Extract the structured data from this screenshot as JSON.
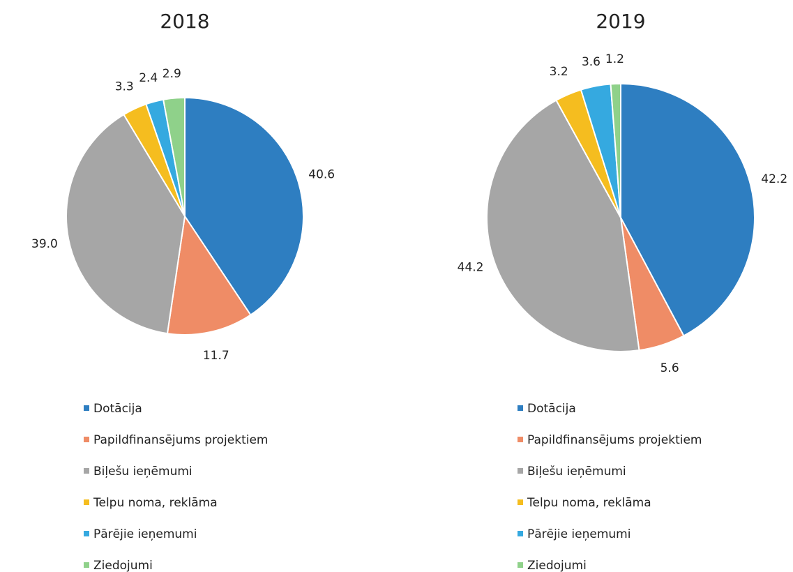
{
  "chart_data": [
    {
      "type": "pie",
      "title": "2018",
      "categories": [
        "Dotācija",
        "Papildfinansējums projektiem",
        "Biļešu ieņēmumi",
        "Telpu noma, reklāma",
        "Pārējie ieņemumi",
        "Ziedojumi"
      ],
      "values": [
        40.6,
        11.7,
        39.0,
        3.3,
        2.4,
        2.9
      ],
      "value_labels": [
        "40.6",
        "11.7",
        "39.0",
        "3.3",
        "2.4",
        "2.9"
      ],
      "colors": [
        "#2e7ec1",
        "#ef8c66",
        "#a6a6a6",
        "#f5bd1f",
        "#35a9e0",
        "#8fd18a"
      ]
    },
    {
      "type": "pie",
      "title": "2019",
      "categories": [
        "Dotācija",
        "Papildfinansējums projektiem",
        "Biļešu ieņēmumi",
        "Telpu noma, reklāma",
        "Pārējie ieņemumi",
        "Ziedojumi"
      ],
      "values": [
        42.2,
        5.6,
        44.2,
        3.2,
        3.6,
        1.2
      ],
      "value_labels": [
        "42.2",
        "5.6",
        "44.2",
        "3.2",
        "3.6",
        "1.2"
      ],
      "colors": [
        "#2e7ec1",
        "#ef8c66",
        "#a6a6a6",
        "#f5bd1f",
        "#35a9e0",
        "#8fd18a"
      ]
    }
  ]
}
